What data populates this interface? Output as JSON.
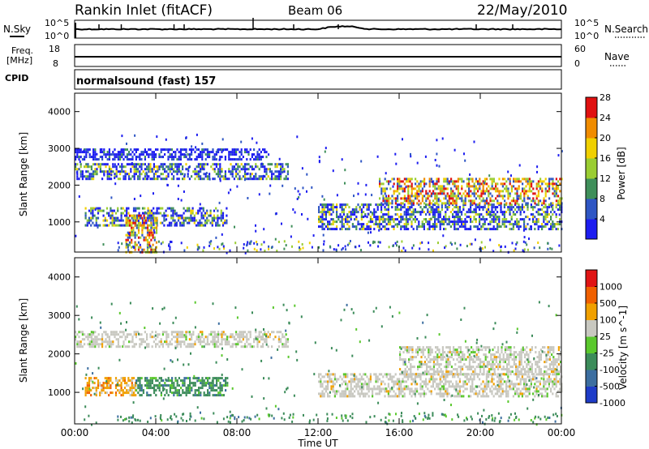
{
  "header": {
    "station": "Rankin Inlet (fitACF)",
    "beam": "Beam 06",
    "date": "22/May/2010"
  },
  "noise_panel": {
    "left_label": "N.Sky",
    "right_label": "N.Search",
    "left_ticks": [
      "10^5",
      "10^0"
    ],
    "right_ticks": [
      "10^5",
      "10^0"
    ]
  },
  "freq_panel": {
    "left_label_line1": "Freq.",
    "left_label_line2": "[MHz]",
    "right_label": "Nave",
    "left_ticks": [
      "18",
      "8"
    ],
    "right_ticks": [
      "60",
      "0"
    ]
  },
  "cpid_panel": {
    "label": "CPID",
    "text": "normalsound (fast) 157"
  },
  "chart_data": [
    {
      "type": "heatmap",
      "title": "Power",
      "ylabel": "Slant Range [km]",
      "xlabel": "Time UT",
      "x_ticks": [
        "00:00",
        "04:00",
        "08:00",
        "12:00",
        "16:00",
        "20:00",
        "00:00"
      ],
      "y_ticks": [
        1000,
        2000,
        3000,
        4000
      ],
      "ylim": [
        180,
        4500
      ],
      "xlim_hours": [
        0,
        24
      ],
      "colorbar": {
        "label": "Power [dB]",
        "tick_labels": [
          "4",
          "8",
          "12",
          "16",
          "20",
          "24",
          "28"
        ],
        "colors": [
          "#1d1df0",
          "#2f56c4",
          "#3f8f5a",
          "#9acd32",
          "#f0d000",
          "#f08c00",
          "#e01010"
        ]
      },
      "bands": [
        {
          "t": [
            0.0,
            10.5
          ],
          "range_km": [
            2200,
            2600
          ],
          "level": "medium"
        },
        {
          "t": [
            0.0,
            9.5
          ],
          "range_km": [
            2700,
            3000
          ],
          "level": "low"
        },
        {
          "t": [
            0.5,
            7.5
          ],
          "range_km": [
            900,
            1400
          ],
          "level": "medium"
        },
        {
          "t": [
            2.5,
            4.0
          ],
          "range_km": [
            180,
            1200
          ],
          "level": "high"
        },
        {
          "t": [
            12.0,
            24.0
          ],
          "range_km": [
            800,
            1500
          ],
          "level": "medium"
        },
        {
          "t": [
            15.0,
            24.0
          ],
          "range_km": [
            1500,
            2200
          ],
          "level": "high"
        }
      ]
    },
    {
      "type": "heatmap",
      "title": "Velocity",
      "ylabel": "Slant Range [km]",
      "xlabel": "Time UT",
      "x_ticks": [
        "00:00",
        "04:00",
        "08:00",
        "12:00",
        "16:00",
        "20:00",
        "00:00"
      ],
      "y_ticks": [
        1000,
        2000,
        3000,
        4000
      ],
      "ylim": [
        180,
        4500
      ],
      "xlim_hours": [
        0,
        24
      ],
      "colorbar": {
        "label": "Velocity [m s^-1]",
        "tick_labels": [
          "1000",
          "500",
          "100",
          "25",
          "-25",
          "-100",
          "-500",
          "-1000"
        ],
        "colors": [
          "#1e3cc8",
          "#3c6ea0",
          "#3c8c5a",
          "#5ac82d",
          "#c8c8c0",
          "#f0a000",
          "#f06000",
          "#e01414"
        ]
      },
      "bands": [
        {
          "t": [
            0.0,
            10.5
          ],
          "range_km": [
            2200,
            2600
          ],
          "level": "near-zero"
        },
        {
          "t": [
            0.5,
            3.0
          ],
          "range_km": [
            900,
            1400
          ],
          "level": "away"
        },
        {
          "t": [
            3.0,
            7.5
          ],
          "range_km": [
            900,
            1400
          ],
          "level": "toward"
        },
        {
          "t": [
            12.0,
            24.0
          ],
          "range_km": [
            900,
            1500
          ],
          "level": "near-zero"
        },
        {
          "t": [
            16.0,
            24.0
          ],
          "range_km": [
            1500,
            2200
          ],
          "level": "near-zero"
        }
      ]
    }
  ]
}
